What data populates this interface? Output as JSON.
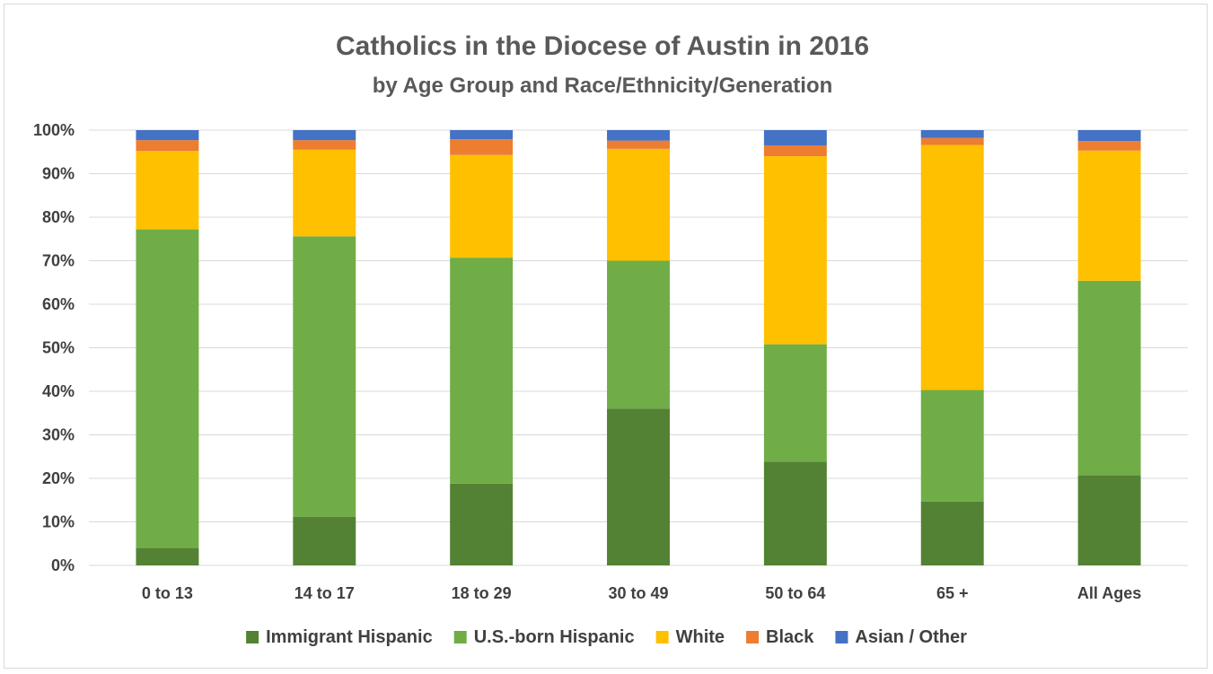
{
  "chart_data": {
    "type": "bar",
    "stacked": true,
    "title": "Catholics in the Diocese of Austin in 2016",
    "subtitle": "by Age Group and Race/Ethnicity/Generation",
    "categories": [
      "0 to 13",
      "14 to 17",
      "18 to 29",
      "30 to 49",
      "50 to 64",
      "65 +",
      "All Ages"
    ],
    "ylim": [
      0,
      100
    ],
    "yticks": [
      "0%",
      "10%",
      "20%",
      "30%",
      "40%",
      "50%",
      "60%",
      "70%",
      "80%",
      "90%",
      "100%"
    ],
    "grid": true,
    "legend_position": "bottom",
    "series": [
      {
        "name": "Immigrant Hispanic",
        "color": "#548235",
        "values": [
          4,
          11.2,
          18.8,
          36,
          23.8,
          14.7,
          20.7
        ]
      },
      {
        "name": "U.S.-born Hispanic",
        "color": "#70ad47",
        "values": [
          73.2,
          64.4,
          51.9,
          34,
          27,
          25.6,
          44.7
        ]
      },
      {
        "name": "White",
        "color": "#ffc000",
        "values": [
          18,
          19.9,
          23.6,
          25.7,
          43.2,
          56.3,
          29.9
        ]
      },
      {
        "name": "Black",
        "color": "#ed7d31",
        "values": [
          2.5,
          2.2,
          3.6,
          1.9,
          2.5,
          1.6,
          2.2
        ]
      },
      {
        "name": "Asian / Other",
        "color": "#4472c4",
        "values": [
          2.3,
          2.3,
          2.1,
          2.4,
          3.5,
          1.8,
          2.5
        ]
      }
    ]
  }
}
